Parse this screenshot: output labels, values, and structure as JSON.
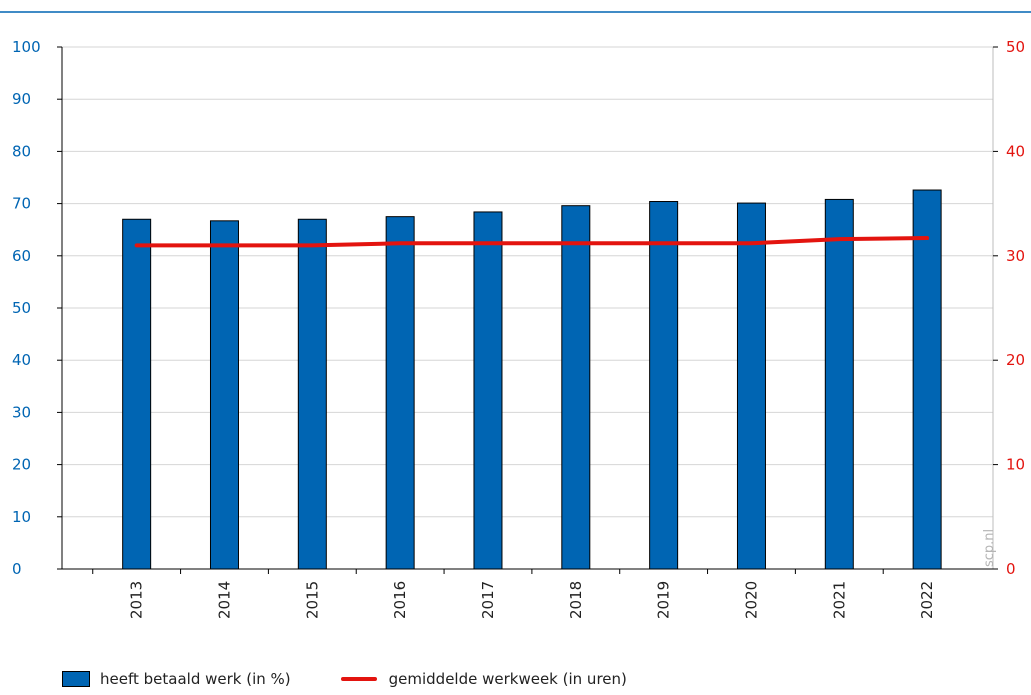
{
  "chart_data": {
    "type": "bar",
    "categories": [
      "2013",
      "2014",
      "2015",
      "2016",
      "2017",
      "2018",
      "2019",
      "2020",
      "2021",
      "2022"
    ],
    "series": [
      {
        "name": "heeft betaald werk (in %)",
        "type": "bar",
        "axis": "left",
        "values": [
          67,
          66.7,
          67,
          67.5,
          68.4,
          69.6,
          70.4,
          70.1,
          70.8,
          72.6
        ]
      },
      {
        "name": "gemiddelde werkweek (in uren)",
        "type": "line",
        "axis": "right",
        "values": [
          31,
          31,
          31,
          31.2,
          31.2,
          31.2,
          31.2,
          31.2,
          31.6,
          31.7
        ]
      }
    ],
    "y_left": {
      "lim": [
        0,
        100
      ],
      "ticks": [
        "0",
        "10",
        "20",
        "30",
        "40",
        "50",
        "60",
        "70",
        "80",
        "90",
        "100"
      ]
    },
    "y_right": {
      "lim": [
        0,
        50
      ],
      "ticks": [
        "0",
        "10",
        "20",
        "30",
        "40",
        "50"
      ]
    },
    "grid": true,
    "legend_placement": "bottom-left"
  },
  "watermark": "scp.nl",
  "colors": {
    "bar": "#0065b3",
    "line": "#e3140f",
    "left_axis": "#0065b3",
    "right_axis": "#e3140f",
    "top_rule": "#0065b3",
    "grid": "#d6d6d6"
  }
}
